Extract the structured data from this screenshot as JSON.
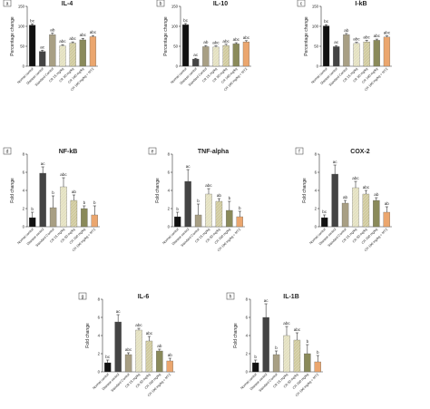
{
  "colors": {
    "normal": "#111111",
    "disease": "#444444",
    "standard": "#a89f84",
    "cr25": "#e3e0bf",
    "cr50": "#cfc99c",
    "cr100": "#8a8a5a",
    "cr100mtx": "#eba66e"
  },
  "chart_data": [
    {
      "type": "bar",
      "panel": "a",
      "title": "IL-4",
      "ylabel": "Percentage change",
      "ylim": [
        0,
        150
      ],
      "yticks": [
        "0",
        "50",
        "100",
        "150"
      ],
      "categories": [
        "Normal control",
        "Disease control",
        "Standard Control",
        "CR 25 mg/kg",
        "CR 50 mg/kg",
        "CR 100 mg/kg",
        "CR 100 mg/kg + MTX"
      ],
      "values": [
        103,
        37,
        79,
        51,
        58,
        66,
        74
      ],
      "errors": [
        3,
        3,
        4,
        3,
        3,
        4,
        3
      ],
      "labels": [
        "bc",
        "ac",
        "ab",
        "abc",
        "abc",
        "abc",
        "abc"
      ]
    },
    {
      "type": "bar",
      "panel": "b",
      "title": "IL-10",
      "ylabel": "Percentage change",
      "ylim": [
        0,
        150
      ],
      "yticks": [
        "0",
        "50",
        "100",
        "150"
      ],
      "categories": [
        "Normal control",
        "Disease control",
        "Standard Control",
        "CR 25 mg/kg",
        "CR 50 mg/kg",
        "CR 100 mg/kg",
        "CR 100 mg/kg + MTX"
      ],
      "values": [
        104,
        18,
        49,
        48,
        52,
        56,
        61
      ],
      "errors": [
        3,
        2,
        3,
        3,
        3,
        3,
        3
      ],
      "labels": [
        "bc",
        "ac",
        "ab",
        "abc",
        "abc",
        "abc",
        "abc"
      ]
    },
    {
      "type": "bar",
      "panel": "c",
      "title": "I-kB",
      "ylabel": "Percentage change",
      "ylim": [
        0,
        150
      ],
      "yticks": [
        "0",
        "50",
        "100",
        "150"
      ],
      "categories": [
        "Normal control",
        "Disease control",
        "Standard Control",
        "CR 25 mg/kg",
        "CR 50 mg/kg",
        "CR 100 mg/kg",
        "CR 100 mg/kg + MTX"
      ],
      "values": [
        101,
        49,
        79,
        57,
        61,
        65,
        73
      ],
      "errors": [
        3,
        3,
        3,
        3,
        4,
        3,
        3
      ],
      "labels": [
        "bc",
        "ac",
        "ab",
        "abc",
        "abc",
        "abc",
        "abc"
      ]
    },
    {
      "type": "bar",
      "panel": "d",
      "title": "NF-kB",
      "ylabel": "Fold change",
      "ylim": [
        0,
        8
      ],
      "yticks": [
        "0",
        "2",
        "4",
        "6",
        "8"
      ],
      "categories": [
        "Normal control",
        "Disease control",
        "Standard Control",
        "CR 25 mg/kg",
        "CR 50 mg/kg",
        "CR 100 mg/kg",
        "CR 100 mg/kg + MTX"
      ],
      "values": [
        1.0,
        5.9,
        2.1,
        4.4,
        2.9,
        2.0,
        1.3
      ],
      "errors": [
        0.6,
        0.7,
        1.3,
        1.0,
        0.6,
        0.3,
        1.0
      ],
      "labels": [
        "b",
        "ac",
        "b",
        "abc",
        "ab",
        "b",
        "b"
      ]
    },
    {
      "type": "bar",
      "panel": "e",
      "title": "TNF-alpha",
      "ylabel": "Fold change",
      "ylim": [
        0,
        8
      ],
      "yticks": [
        "0",
        "2",
        "4",
        "6",
        "8"
      ],
      "categories": [
        "Normal control",
        "Disease control",
        "Standard Control",
        "CR 25 mg/kg",
        "CR 50 mg/kg",
        "CR 100 mg/kg",
        "CR 100 mg/kg + MTX"
      ],
      "values": [
        1.1,
        5.0,
        1.3,
        3.6,
        2.8,
        1.8,
        1.1
      ],
      "errors": [
        0.5,
        1.3,
        1.2,
        0.6,
        0.3,
        1.0,
        0.6
      ],
      "labels": [
        "b",
        "ac",
        "b",
        "abc",
        "ab",
        "b",
        "b"
      ]
    },
    {
      "type": "bar",
      "panel": "f",
      "title": "COX-2",
      "ylabel": "Fold change",
      "ylim": [
        0,
        8
      ],
      "yticks": [
        "0",
        "2",
        "4",
        "6",
        "8"
      ],
      "categories": [
        "Normal control",
        "Disease control",
        "Standard Control",
        "CR 25 mg/kg",
        "CR 50 mg/kg",
        "CR 100 mg/kg",
        "CR 100 mg/kg + MTX"
      ],
      "values": [
        1.0,
        5.8,
        2.6,
        4.3,
        3.6,
        2.9,
        1.6
      ],
      "errors": [
        0.3,
        1.0,
        0.3,
        0.7,
        0.4,
        0.3,
        0.6
      ],
      "labels": [
        "bc",
        "ac",
        "ab",
        "abc",
        "abc",
        "ab",
        "ab"
      ]
    },
    {
      "type": "bar",
      "panel": "g",
      "title": "IL-6",
      "ylabel": "Fold change",
      "ylim": [
        0,
        8
      ],
      "yticks": [
        "0",
        "2",
        "4",
        "6",
        "8"
      ],
      "categories": [
        "Normal control",
        "Disease control",
        "Standard Control",
        "CR 25 mg/kg",
        "CR 50 mg/kg",
        "CR 100 mg/kg",
        "CR 100 mg/kg + MTX"
      ],
      "values": [
        1.0,
        5.5,
        1.9,
        4.6,
        3.4,
        2.3,
        1.2
      ],
      "errors": [
        0.3,
        0.8,
        0.2,
        0.2,
        0.5,
        0.2,
        0.3
      ],
      "labels": [
        "bc",
        "ac",
        "abc",
        "abc",
        "abc",
        "ab",
        "ab"
      ]
    },
    {
      "type": "bar",
      "panel": "h",
      "title": "IL-1B",
      "ylabel": "Fold change",
      "ylim": [
        0,
        8
      ],
      "yticks": [
        "0",
        "2",
        "4",
        "6",
        "8"
      ],
      "categories": [
        "Normal control",
        "Disease control",
        "Standard Control",
        "CR 25 mg/kg",
        "CR 50 mg/kg",
        "CR 100 mg/kg",
        "CR 100 mg/kg + MTX"
      ],
      "values": [
        1.0,
        6.0,
        1.9,
        4.0,
        3.5,
        2.0,
        1.1
      ],
      "errors": [
        0.3,
        1.5,
        0.4,
        1.0,
        0.8,
        1.0,
        0.7
      ],
      "labels": [
        "b",
        "ac",
        "b",
        "abc",
        "abc",
        "b",
        "b"
      ]
    }
  ]
}
